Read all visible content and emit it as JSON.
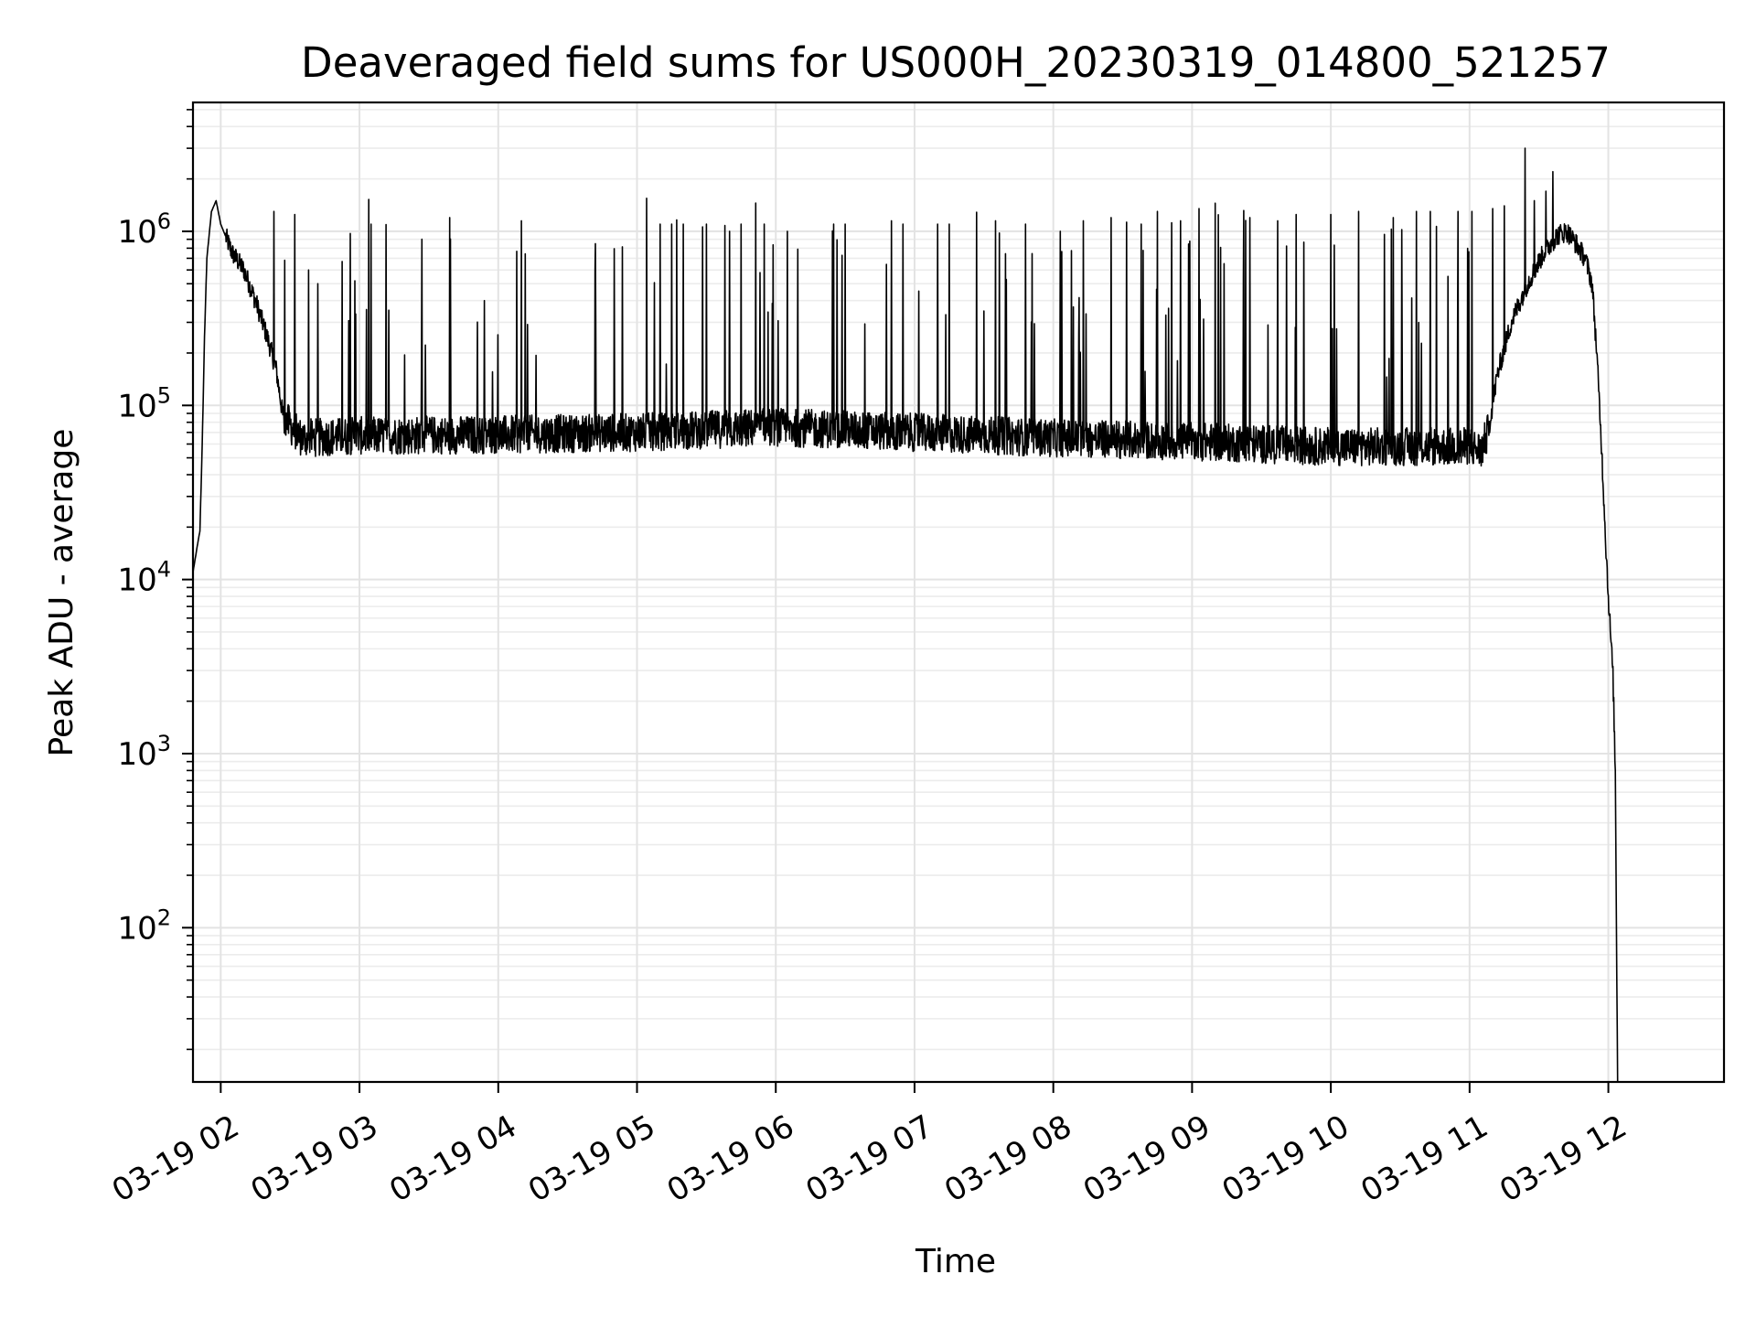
{
  "chart_data": {
    "type": "line",
    "title": "Deaveraged field sums for US000H_20230319_014800_521257",
    "xlabel": "Time",
    "ylabel": "Peak ADU - average",
    "x_ticks": [
      "03-19 02",
      "03-19 03",
      "03-19 04",
      "03-19 05",
      "03-19 06",
      "03-19 07",
      "03-19 08",
      "03-19 09",
      "03-19 10",
      "03-19 11",
      "03-19 12"
    ],
    "y_scale": "log",
    "y_tick_values": [
      100,
      1000,
      10000,
      100000,
      1000000
    ],
    "y_tick_labels": [
      {
        "base": "10",
        "exp": "2"
      },
      {
        "base": "10",
        "exp": "3"
      },
      {
        "base": "10",
        "exp": "4"
      },
      {
        "base": "10",
        "exp": "5"
      },
      {
        "base": "10",
        "exp": "6"
      }
    ],
    "xlim": [
      "03-19 01:48",
      "03-19 12:50"
    ],
    "ylim": [
      13,
      5500000
    ],
    "grid": true,
    "line_color": "#000000",
    "series": [
      {
        "points": [
          [
            "03-19 01:48",
            11000
          ],
          [
            "03-19 01:50",
            16000
          ],
          [
            "03-19 01:51",
            19000
          ],
          [
            "03-19 01:52",
            60000
          ],
          [
            "03-19 01:53",
            250000
          ],
          [
            "03-19 01:54",
            700000
          ],
          [
            "03-19 01:56",
            1300000
          ],
          [
            "03-19 01:58",
            1500000
          ],
          [
            "03-19 02:00",
            1100000
          ],
          [
            "03-19 02:05",
            750000
          ],
          [
            "03-19 02:10",
            600000
          ],
          [
            "03-19 02:15",
            400000
          ],
          [
            "03-19 02:20",
            250000
          ],
          [
            "03-19 02:24",
            160000
          ],
          [
            "03-19 02:27",
            85000
          ],
          [
            "03-19 02:35",
            65000
          ],
          [
            "03-19 03:00",
            67000
          ],
          [
            "03-19 04:00",
            68000
          ],
          [
            "03-19 05:00",
            70000
          ],
          [
            "03-19 06:00",
            75000
          ],
          [
            "03-19 07:00",
            70000
          ],
          [
            "03-19 08:00",
            65000
          ],
          [
            "03-19 09:00",
            62000
          ],
          [
            "03-19 10:00",
            58000
          ],
          [
            "03-19 11:00",
            58000
          ],
          [
            "03-19 11:05",
            55000
          ],
          [
            "03-19 11:08",
            70000
          ],
          [
            "03-19 11:12",
            150000
          ],
          [
            "03-19 11:18",
            300000
          ],
          [
            "03-19 11:25",
            500000
          ],
          [
            "03-19 11:32",
            750000
          ],
          [
            "03-19 11:38",
            950000
          ],
          [
            "03-19 11:42",
            1000000
          ],
          [
            "03-19 11:46",
            850000
          ],
          [
            "03-19 11:50",
            700000
          ],
          [
            "03-19 11:53",
            500000
          ],
          [
            "03-19 11:55",
            200000
          ],
          [
            "03-19 11:57",
            60000
          ],
          [
            "03-19 11:59",
            15000
          ],
          [
            "03-19 12:00",
            8000
          ],
          [
            "03-19 12:02",
            2800
          ],
          [
            "03-19 12:03",
            800
          ],
          [
            "03-19 12:04",
            13
          ]
        ],
        "spikes": [
          [
            "03-19 02:23",
            1300000
          ],
          [
            "03-19 02:32",
            1250000
          ],
          [
            "03-19 02:38",
            600000
          ],
          [
            "03-19 02:42",
            500000
          ],
          [
            "03-19 02:58",
            520000
          ],
          [
            "03-19 03:05",
            1100000
          ],
          [
            "03-19 03:27",
            900000
          ],
          [
            "03-19 03:39",
            1200000
          ],
          [
            "03-19 03:54",
            400000
          ],
          [
            "03-19 04:10",
            1150000
          ],
          [
            "03-19 04:42",
            850000
          ],
          [
            "03-19 05:10",
            1100000
          ],
          [
            "03-19 05:15",
            1100000
          ],
          [
            "03-19 05:20",
            1100000
          ],
          [
            "03-19 05:30",
            1100000
          ],
          [
            "03-19 05:40",
            1000000
          ],
          [
            "03-19 05:45",
            1100000
          ],
          [
            "03-19 05:55",
            1100000
          ],
          [
            "03-19 06:05",
            1000000
          ],
          [
            "03-19 06:25",
            1100000
          ],
          [
            "03-19 06:30",
            1100000
          ],
          [
            "03-19 06:50",
            1150000
          ],
          [
            "03-19 06:55",
            1100000
          ],
          [
            "03-19 07:10",
            1100000
          ],
          [
            "03-19 07:15",
            1100000
          ],
          [
            "03-19 07:35",
            1150000
          ],
          [
            "03-19 07:48",
            1100000
          ],
          [
            "03-19 08:03",
            1000000
          ],
          [
            "03-19 08:13",
            1150000
          ],
          [
            "03-19 08:25",
            1200000
          ],
          [
            "03-19 08:38",
            1100000
          ],
          [
            "03-19 08:45",
            1300000
          ],
          [
            "03-19 08:55",
            1150000
          ],
          [
            "03-19 09:03",
            1350000
          ],
          [
            "03-19 09:10",
            1450000
          ],
          [
            "03-19 09:25",
            1200000
          ],
          [
            "03-19 09:37",
            1150000
          ],
          [
            "03-19 09:45",
            1250000
          ],
          [
            "03-19 10:00",
            1250000
          ],
          [
            "03-19 10:12",
            1300000
          ],
          [
            "03-19 10:27",
            1200000
          ],
          [
            "03-19 10:37",
            1300000
          ],
          [
            "03-19 10:43",
            1300000
          ],
          [
            "03-19 10:55",
            1300000
          ],
          [
            "03-19 11:01",
            1300000
          ],
          [
            "03-19 11:10",
            1350000
          ],
          [
            "03-19 11:15",
            1400000
          ],
          [
            "03-19 11:24",
            3000000
          ],
          [
            "03-19 11:28",
            1500000
          ],
          [
            "03-19 11:33",
            1700000
          ],
          [
            "03-19 11:36",
            2200000
          ]
        ]
      }
    ]
  }
}
